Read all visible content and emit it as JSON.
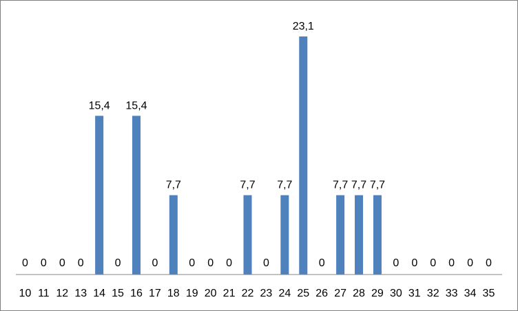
{
  "chart_data": {
    "type": "bar",
    "categories": [
      "10",
      "11",
      "12",
      "13",
      "14",
      "15",
      "16",
      "17",
      "18",
      "19",
      "20",
      "21",
      "22",
      "23",
      "24",
      "25",
      "26",
      "27",
      "28",
      "29",
      "30",
      "31",
      "32",
      "33",
      "34",
      "35"
    ],
    "values": [
      0,
      0,
      0,
      0,
      15.4,
      0,
      15.4,
      0,
      7.7,
      0,
      0,
      0,
      7.7,
      0,
      7.7,
      23.1,
      0,
      7.7,
      7.7,
      7.7,
      0,
      0,
      0,
      0,
      0,
      0
    ],
    "data_labels": [
      "0",
      "0",
      "0",
      "0",
      "15,4",
      "0",
      "15,4",
      "0",
      "7,7",
      "0",
      "0",
      "0",
      "7,7",
      "0",
      "7,7",
      "23,1",
      "0",
      "7,7",
      "7,7",
      "7,7",
      "0",
      "0",
      "0",
      "0",
      "0",
      "0"
    ],
    "title": "",
    "xlabel": "",
    "ylabel": "",
    "ylim": [
      0,
      23.1
    ],
    "grid": false,
    "legend": false,
    "colors": {
      "bar": "#4f81bd",
      "axis": "#868686",
      "border": "#7f7f7f"
    }
  }
}
